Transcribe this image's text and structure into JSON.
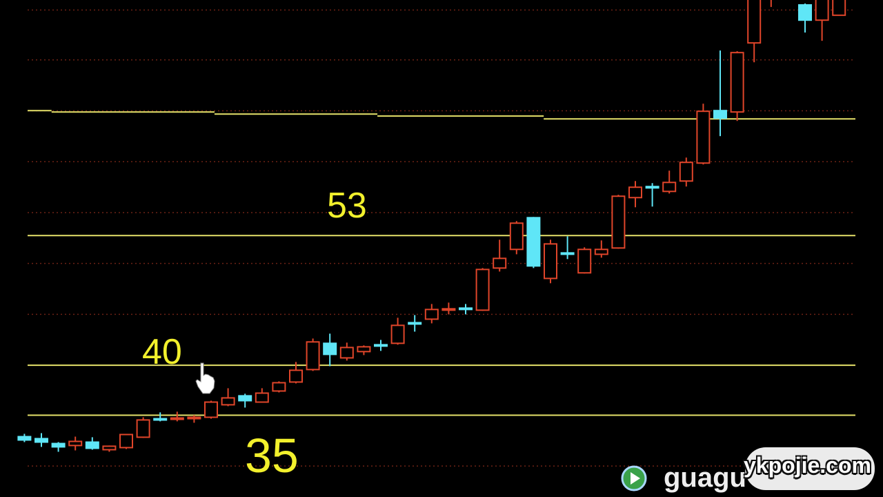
{
  "chart_data": {
    "type": "candlestick",
    "title": "",
    "xlabel": "",
    "ylabel": "",
    "ylim": [
      26.8,
      76.6
    ],
    "grid": true,
    "grid_values": [
      29.9,
      45.1,
      50.2,
      55.3,
      60.4,
      65.5,
      70.6,
      75.6
    ],
    "candle_format": [
      "open",
      "high",
      "low",
      "close"
    ],
    "candles": [
      [
        32.85,
        33.13,
        32.3,
        32.51
      ],
      [
        32.65,
        33.2,
        31.82,
        32.3
      ],
      [
        32.16,
        32.3,
        31.33,
        31.82
      ],
      [
        31.96,
        32.85,
        31.47,
        32.37
      ],
      [
        32.3,
        32.79,
        31.54,
        31.68
      ],
      [
        31.54,
        31.96,
        31.33,
        31.89
      ],
      [
        31.75,
        33.1,
        31.61,
        33.06
      ],
      [
        32.79,
        34.79,
        32.72,
        34.52
      ],
      [
        34.65,
        35.28,
        34.38,
        34.52
      ],
      [
        34.58,
        35.35,
        34.38,
        34.72
      ],
      [
        34.65,
        35.0,
        34.24,
        34.79
      ],
      [
        34.79,
        36.45,
        34.65,
        36.31
      ],
      [
        36.04,
        37.7,
        35.9,
        36.73
      ],
      [
        36.94,
        37.15,
        35.76,
        36.45
      ],
      [
        36.31,
        37.7,
        36.25,
        37.21
      ],
      [
        37.42,
        38.39,
        37.28,
        38.25
      ],
      [
        38.32,
        40.33,
        38.18,
        39.5
      ],
      [
        39.57,
        42.68,
        39.43,
        42.34
      ],
      [
        42.2,
        43.17,
        39.91,
        41.09
      ],
      [
        40.74,
        42.27,
        40.47,
        41.78
      ],
      [
        41.37,
        41.99,
        41.02,
        41.85
      ],
      [
        42.06,
        42.54,
        41.44,
        41.92
      ],
      [
        42.2,
        44.76,
        42.06,
        44.0
      ],
      [
        44.27,
        45.03,
        43.37,
        44.13
      ],
      [
        44.62,
        46.14,
        44.2,
        45.59
      ],
      [
        45.52,
        46.28,
        45.1,
        45.66
      ],
      [
        45.73,
        46.14,
        45.1,
        45.59
      ],
      [
        45.52,
        49.74,
        45.45,
        49.6
      ],
      [
        49.74,
        52.58,
        49.39,
        50.71
      ],
      [
        51.61,
        54.45,
        51.12,
        54.24
      ],
      [
        54.79,
        54.86,
        49.74,
        49.95
      ],
      [
        48.7,
        52.58,
        48.22,
        52.16
      ],
      [
        51.26,
        52.92,
        50.64,
        51.12
      ],
      [
        49.26,
        51.82,
        49.19,
        51.61
      ],
      [
        51.12,
        52.51,
        50.78,
        51.61
      ],
      [
        51.75,
        57.08,
        51.68,
        56.94
      ],
      [
        56.8,
        58.46,
        55.83,
        57.84
      ],
      [
        57.91,
        58.25,
        55.9,
        57.77
      ],
      [
        57.42,
        59.5,
        57.21,
        58.32
      ],
      [
        58.46,
        60.81,
        57.91,
        60.33
      ],
      [
        60.26,
        66.21,
        60.12,
        65.45
      ],
      [
        65.52,
        71.54,
        62.96,
        64.76
      ],
      [
        65.38,
        71.47,
        64.48,
        71.33
      ],
      [
        72.3,
        77.5,
        70.36,
        77.0
      ],
      [
        77.2,
        78.0,
        75.9,
        77.8
      ],
      null,
      [
        76.11,
        76.25,
        73.34,
        74.58
      ],
      [
        74.58,
        77.5,
        72.51,
        77.0
      ],
      [
        75.07,
        77.5,
        75.07,
        77.0
      ]
    ],
    "level_lines": [
      {
        "value": 53,
        "label": "53"
      },
      {
        "value": 40,
        "label": "40"
      },
      {
        "value": 35,
        "label": "35"
      }
    ],
    "step_line": [
      {
        "from": -0.2,
        "to": 1.6,
        "value": 65.52
      },
      {
        "from": 1.6,
        "to": 11.2,
        "value": 65.38
      },
      {
        "from": 11.2,
        "to": 20.8,
        "value": 65.17
      },
      {
        "from": 20.8,
        "to": 30.6,
        "value": 64.97
      },
      {
        "from": 30.6,
        "to": 49.0,
        "value": 64.69
      }
    ],
    "colors": {
      "up": "#e0452a",
      "down": "#5fe6f7",
      "level_line": "#e6e26a",
      "grid": "#6e2215",
      "label": "#f2f02c",
      "background": "#000000"
    }
  },
  "labels": {
    "l53": "53",
    "l40": "40",
    "l35": "35"
  },
  "watermark": {
    "logo_icon": "play-circle-icon",
    "text": "guagu",
    "site": "ykpojie.com"
  },
  "cursor": {
    "icon": "hand-pointer-icon"
  }
}
